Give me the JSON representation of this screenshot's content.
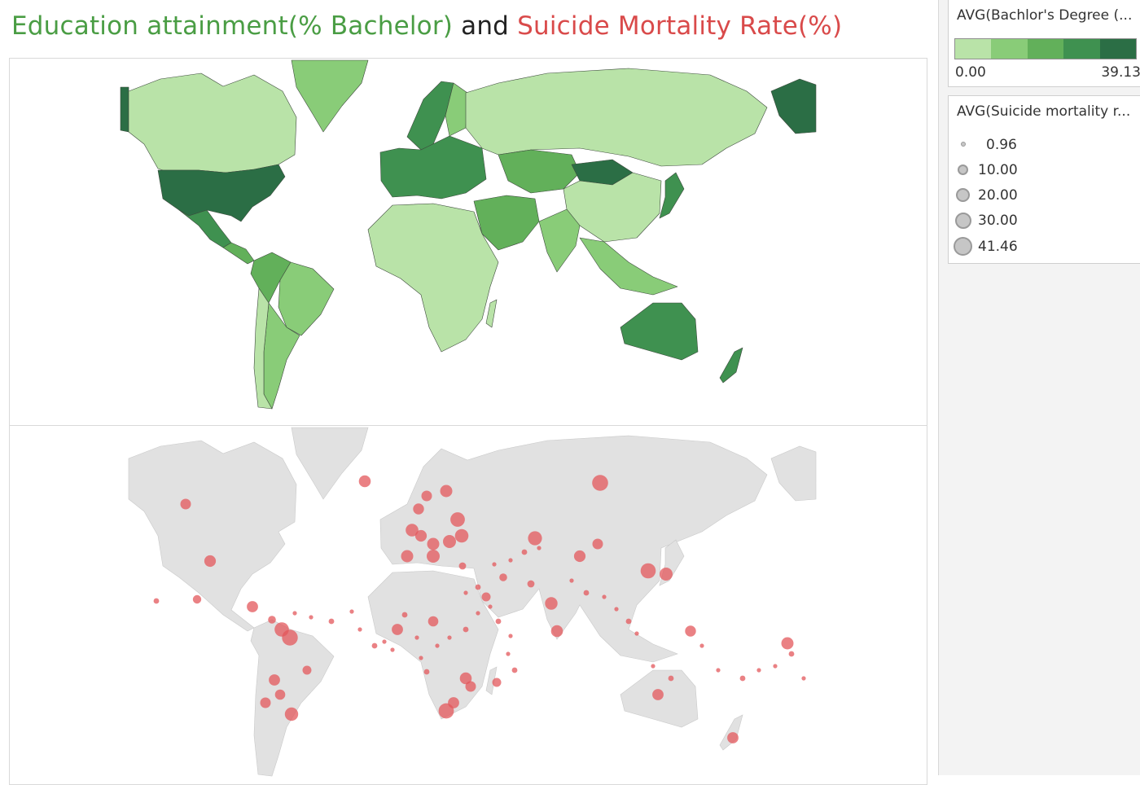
{
  "title": {
    "part1": "Education attainment(% Bachelor)",
    "part2": "and",
    "part3": "Suicide Mortality Rate(%)"
  },
  "colors": {
    "title_green": "#4a9d44",
    "title_red": "#d94a4a",
    "ramp": [
      "#b9e3a8",
      "#89cc78",
      "#62b05a",
      "#3f9150",
      "#2b6e45"
    ],
    "land_top_default": "#b9e3a8",
    "land_bottom": "#e1e1e1",
    "bubble": "#e3575b"
  },
  "legend_color": {
    "title": "AVG(Bachlor's Degree (...",
    "min_label": "0.00",
    "max_label": "39.13"
  },
  "legend_size": {
    "title": "AVG(Suicide mortality r...",
    "items": [
      {
        "label": "0.96"
      },
      {
        "label": "10.00"
      },
      {
        "label": "20.00"
      },
      {
        "label": "30.00"
      },
      {
        "label": "41.46"
      }
    ]
  },
  "education_map": {
    "measure": "AVG(Bachlor's Degree (...",
    "regions": [
      {
        "region": "Canada",
        "level": 0
      },
      {
        "region": "Alaska",
        "level": 4
      },
      {
        "region": "Greenland",
        "level": 1
      },
      {
        "region": "United States",
        "level": 4
      },
      {
        "region": "Mexico",
        "level": 3
      },
      {
        "region": "Central America",
        "level": 2
      },
      {
        "region": "Brazil",
        "level": 1
      },
      {
        "region": "Andes",
        "level": 2
      },
      {
        "region": "Argentina",
        "level": 1
      },
      {
        "region": "Chile",
        "level": 0
      },
      {
        "region": "Western Europe",
        "level": 3
      },
      {
        "region": "Scandinavia",
        "level": 3
      },
      {
        "region": "Finland",
        "level": 1
      },
      {
        "region": "Russia",
        "level": 0
      },
      {
        "region": "Kazakhstan",
        "level": 2
      },
      {
        "region": "Mongolia",
        "level": 4
      },
      {
        "region": "China",
        "level": 0
      },
      {
        "region": "Middle East",
        "level": 2
      },
      {
        "region": "India",
        "level": 1
      },
      {
        "region": "Southeast Asia",
        "level": 1
      },
      {
        "region": "Japan",
        "level": 3
      },
      {
        "region": "Africa",
        "level": 0
      },
      {
        "region": "Australia",
        "level": 3
      },
      {
        "region": "New Zealand",
        "level": 3
      }
    ]
  },
  "suicide_map": {
    "measure": "AVG(Suicide mortality r...",
    "bubbles": [
      {
        "place": "Russia",
        "value": 31
      },
      {
        "place": "Lithuania",
        "value": 24
      },
      {
        "place": "Kazakhstan",
        "value": 22
      },
      {
        "place": "Iceland",
        "value": 14
      },
      {
        "place": "Finland",
        "value": 15
      },
      {
        "place": "Sweden",
        "value": 10
      },
      {
        "place": "Norway",
        "value": 11
      },
      {
        "place": "Belarus",
        "value": 20
      },
      {
        "place": "Ukraine",
        "value": 18
      },
      {
        "place": "Poland",
        "value": 15
      },
      {
        "place": "Hungary",
        "value": 18
      },
      {
        "place": "France",
        "value": 15
      },
      {
        "place": "Germany",
        "value": 13
      },
      {
        "place": "Belgium",
        "value": 17
      },
      {
        "place": "Canada",
        "value": 10
      },
      {
        "place": "United States",
        "value": 13
      },
      {
        "place": "Mexico",
        "value": 5
      },
      {
        "place": "Cuba",
        "value": 12
      },
      {
        "place": "Guyana",
        "value": 30
      },
      {
        "place": "Suriname",
        "value": 23
      },
      {
        "place": "Venezuela",
        "value": 4
      },
      {
        "place": "Brazil",
        "value": 6
      },
      {
        "place": "Bolivia",
        "value": 12
      },
      {
        "place": "Uruguay",
        "value": 19
      },
      {
        "place": "Argentina",
        "value": 9
      },
      {
        "place": "Chile",
        "value": 10
      },
      {
        "place": "Japan",
        "value": 18
      },
      {
        "place": "South Korea",
        "value": 27
      },
      {
        "place": "China",
        "value": 10
      },
      {
        "place": "India",
        "value": 16
      },
      {
        "place": "Sri Lanka",
        "value": 14
      },
      {
        "place": "Mongolia",
        "value": 13
      },
      {
        "place": "Nigeria",
        "value": 9
      },
      {
        "place": "Ivory Coast",
        "value": 12
      },
      {
        "place": "Lesotho",
        "value": 28
      },
      {
        "place": "South Africa",
        "value": 12
      },
      {
        "place": "Zimbabwe",
        "value": 14
      },
      {
        "place": "Mozambique",
        "value": 10
      },
      {
        "place": "Australia",
        "value": 12
      },
      {
        "place": "New Zealand",
        "value": 12
      },
      {
        "place": "Kiribati",
        "value": 15
      },
      {
        "place": "Micronesia",
        "value": 11
      },
      {
        "place": "Madagascar",
        "value": 6
      },
      {
        "place": "Yemen",
        "value": 6
      },
      {
        "place": "Turkey",
        "value": 3
      },
      {
        "place": "Iran",
        "value": 4
      },
      {
        "place": "Pakistan",
        "value": 3
      }
    ]
  }
}
